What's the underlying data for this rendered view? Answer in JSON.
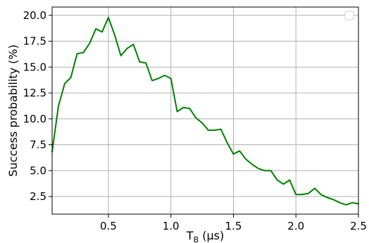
{
  "chart_data": {
    "type": "line",
    "title": "",
    "xlabel": "T_B (μs)",
    "ylabel": "Success probability (%)",
    "xlim": [
      0.05,
      2.5
    ],
    "ylim": [
      0.8,
      20.8
    ],
    "grid": true,
    "legend": {
      "placement": "top-right",
      "entries": []
    },
    "x_ticks": [
      {
        "value": 0.5,
        "label": "0.5"
      },
      {
        "value": 1.0,
        "label": "1.0"
      },
      {
        "value": 1.5,
        "label": "1.5"
      },
      {
        "value": 2.0,
        "label": "2.0"
      },
      {
        "value": 2.5,
        "label": "2.5"
      }
    ],
    "y_ticks": [
      {
        "value": 2.5,
        "label": "2.5"
      },
      {
        "value": 5.0,
        "label": "5.0"
      },
      {
        "value": 7.5,
        "label": "7.5"
      },
      {
        "value": 10.0,
        "label": "10.0"
      },
      {
        "value": 12.5,
        "label": "12.5"
      },
      {
        "value": 15.0,
        "label": "15.0"
      },
      {
        "value": 17.5,
        "label": "17.5"
      },
      {
        "value": 20.0,
        "label": "20.0"
      }
    ],
    "series": [
      {
        "color": "#008000",
        "x": [
          0.05,
          0.1,
          0.15,
          0.2,
          0.25,
          0.3,
          0.35,
          0.4,
          0.45,
          0.5,
          0.55,
          0.6,
          0.65,
          0.7,
          0.75,
          0.8,
          0.85,
          0.9,
          0.95,
          1.0,
          1.05,
          1.1,
          1.15,
          1.2,
          1.25,
          1.3,
          1.35,
          1.4,
          1.45,
          1.5,
          1.55,
          1.6,
          1.65,
          1.7,
          1.75,
          1.8,
          1.85,
          1.9,
          1.95,
          2.0,
          2.05,
          2.1,
          2.15,
          2.2,
          2.25,
          2.3,
          2.35,
          2.4,
          2.45,
          2.5
        ],
        "y": [
          6.8,
          11.2,
          13.4,
          14.0,
          16.3,
          16.4,
          17.3,
          18.7,
          18.4,
          19.8,
          18.1,
          16.1,
          16.8,
          17.2,
          15.5,
          15.4,
          13.7,
          13.9,
          14.2,
          13.9,
          10.7,
          11.1,
          11.0,
          10.1,
          9.6,
          8.9,
          8.9,
          9.0,
          7.7,
          6.6,
          6.9,
          6.1,
          5.6,
          5.2,
          5.0,
          5.0,
          4.1,
          3.7,
          4.1,
          2.7,
          2.7,
          2.8,
          3.3,
          2.7,
          2.4,
          2.2,
          1.9,
          1.7,
          1.9,
          1.8
        ]
      }
    ]
  }
}
